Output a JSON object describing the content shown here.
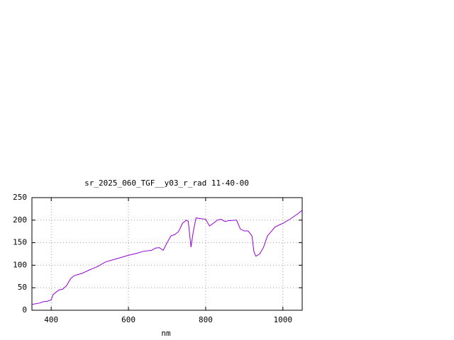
{
  "chart_data": {
    "type": "line",
    "title": "sr_2025_060_TGF__y03_r_rad 11-40-00",
    "x_label": "nm",
    "x": [
      350,
      370,
      380,
      390,
      400,
      405,
      420,
      430,
      440,
      450,
      460,
      480,
      500,
      520,
      540,
      560,
      580,
      600,
      620,
      640,
      660,
      670,
      680,
      690,
      700,
      710,
      720,
      730,
      740,
      750,
      755,
      762,
      768,
      775,
      790,
      800,
      810,
      820,
      830,
      840,
      850,
      860,
      880,
      890,
      900,
      910,
      920,
      925,
      930,
      940,
      950,
      960,
      980,
      1000,
      1020,
      1040,
      1050
    ],
    "values": [
      13,
      16,
      19,
      20,
      23,
      35,
      45,
      47,
      55,
      70,
      77,
      82,
      90,
      97,
      107,
      112,
      117,
      122,
      126,
      131,
      133,
      138,
      139,
      133,
      150,
      165,
      168,
      175,
      193,
      200,
      197,
      140,
      175,
      205,
      203,
      202,
      187,
      193,
      200,
      202,
      197,
      199,
      200,
      180,
      176,
      176,
      165,
      130,
      120,
      125,
      140,
      165,
      185,
      193,
      203,
      215,
      222
    ],
    "color": "#9400d3",
    "xlim": [
      350,
      1050
    ],
    "xticks": [
      400,
      600,
      800,
      1000
    ],
    "ylim": [
      0,
      250
    ],
    "yticks": [
      0,
      50,
      100,
      150,
      200,
      250
    ],
    "grid": true
  }
}
